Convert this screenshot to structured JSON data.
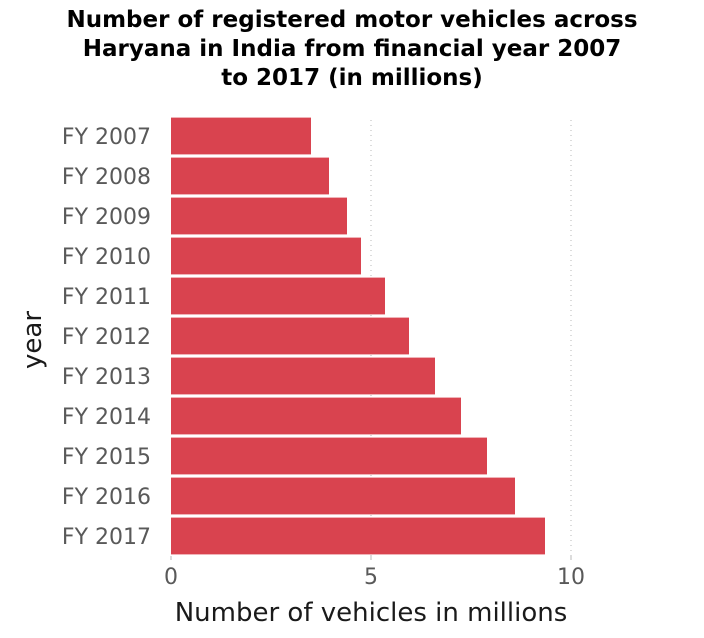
{
  "chart_data": {
    "type": "bar",
    "orientation": "horizontal",
    "title": "Number of registered motor vehicles across Haryana in India from financial year 2007 to 2017 (in millions)",
    "title_lines": [
      "Number of registered motor vehicles across",
      "Haryana in India from financial year 2007",
      "to 2017 (in millions)"
    ],
    "xlabel": "Number of vehicles in millions",
    "ylabel": "year",
    "categories": [
      "FY 2007",
      "FY 2008",
      "FY 2009",
      "FY 2010",
      "FY 2011",
      "FY 2012",
      "FY 2013",
      "FY 2014",
      "FY 2015",
      "FY 2016",
      "FY 2017"
    ],
    "values": [
      3.5,
      3.95,
      4.4,
      4.75,
      5.35,
      5.95,
      6.6,
      7.25,
      7.9,
      8.6,
      9.35
    ],
    "xlim": [
      0,
      10
    ],
    "xticks": [
      "0",
      "5",
      "10"
    ],
    "grid": "vertical dotted",
    "bar_color": "#d9434f"
  }
}
